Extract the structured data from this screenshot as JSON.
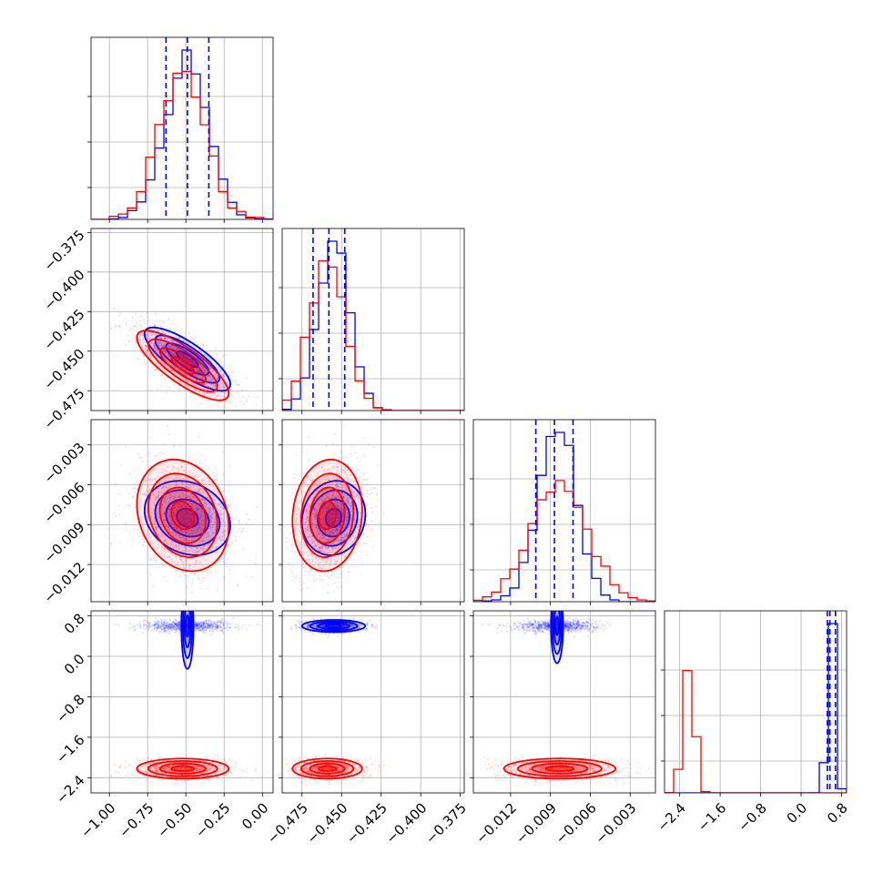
{
  "chart_data": {
    "type": "corner",
    "series": [
      {
        "name": "",
        "color": "#0000ff",
        "mean": [
          -0.49,
          -0.455,
          -0.0085,
          0.6
        ],
        "std": [
          0.14,
          0.01,
          0.0014,
          0.06
        ],
        "quantiles": [
          [
            -0.63,
            -0.49,
            -0.35
          ],
          [
            -0.468,
            -0.458,
            -0.448
          ],
          [
            -0.0101,
            -0.0087,
            -0.0073
          ],
          [
            0.52,
            0.57,
            0.68
          ]
        ]
      },
      {
        "name": "",
        "color": "#ff0000",
        "mean": [
          -0.52,
          -0.459,
          -0.0083,
          -2.22
        ],
        "std": [
          0.15,
          0.011,
          0.0021,
          0.1
        ]
      }
    ],
    "correlations": [
      {
        "pair": [
          0,
          1
        ],
        "r": -0.8
      },
      {
        "pair": [
          0,
          2
        ],
        "r": -0.2
      },
      {
        "pair": [
          1,
          2
        ],
        "r": 0.1
      }
    ],
    "axes": [
      {
        "lim": [
          -1.12,
          0.07
        ],
        "ticks": [
          -1.0,
          -0.75,
          -0.5,
          -0.25,
          0.0
        ],
        "ticklabels": [
          "−1.00",
          "−0.75",
          "−0.50",
          "−0.25",
          "0.00"
        ]
      },
      {
        "lim": [
          -0.4875,
          -0.3725
        ],
        "ticks": [
          -0.475,
          -0.45,
          -0.425,
          -0.4,
          -0.375
        ],
        "ticklabels": [
          "−0.475",
          "−0.450",
          "−0.425",
          "−0.400",
          "−0.375"
        ]
      },
      {
        "lim": [
          -0.0148,
          -0.0011
        ],
        "ticks": [
          -0.012,
          -0.009,
          -0.006,
          -0.003
        ],
        "ticklabels": [
          "−0.012",
          "−0.009",
          "−0.006",
          "−0.003"
        ]
      },
      {
        "lim": [
          -2.7,
          0.9
        ],
        "ticks": [
          -2.4,
          -1.6,
          -0.8,
          0.0,
          0.8
        ],
        "ticklabels": [
          "−2.4",
          "−1.6",
          "−0.8",
          "0.0",
          "0.8"
        ]
      }
    ],
    "grid": true
  }
}
